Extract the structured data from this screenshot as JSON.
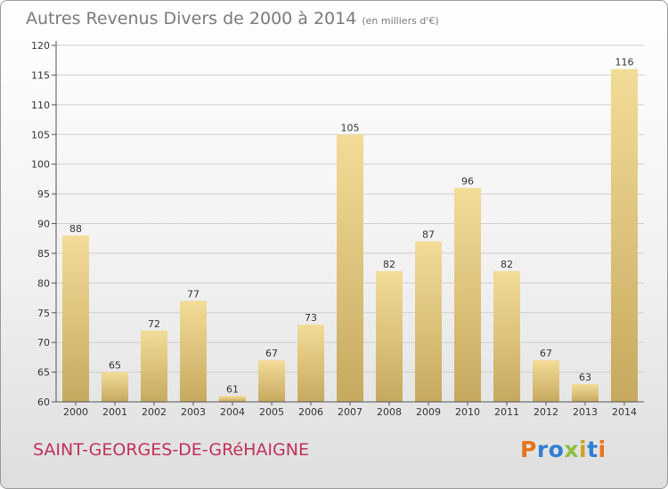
{
  "header": {
    "title": "Autres Revenus Divers de 2000 à 2014",
    "unit": "(en milliers d'€)"
  },
  "footer": {
    "location": "SAINT-GEORGES-DE-GRéHAIGNE",
    "logo_text": "Proxiti",
    "logo_colors": [
      "#e8731a",
      "#2f7fd1",
      "#2f7fd1",
      "#8dc03b",
      "#c9a51f",
      "#2f7fd1",
      "#e8731a"
    ]
  },
  "chart_data": {
    "type": "bar",
    "categories": [
      "2000",
      "2001",
      "2002",
      "2003",
      "2004",
      "2005",
      "2006",
      "2007",
      "2008",
      "2009",
      "2010",
      "2011",
      "2012",
      "2013",
      "2014"
    ],
    "values": [
      88,
      65,
      72,
      77,
      61,
      67,
      73,
      105,
      82,
      87,
      96,
      82,
      67,
      63,
      116
    ],
    "ylim": [
      60,
      120
    ],
    "yticks": [
      60,
      65,
      70,
      75,
      80,
      85,
      90,
      95,
      100,
      105,
      110,
      115,
      120
    ],
    "grid": true,
    "colors": {
      "bar_light": "#f3dc98",
      "bar_dark": "#c6a95f",
      "grid": "#cfcfcf",
      "text": "#333333"
    }
  }
}
